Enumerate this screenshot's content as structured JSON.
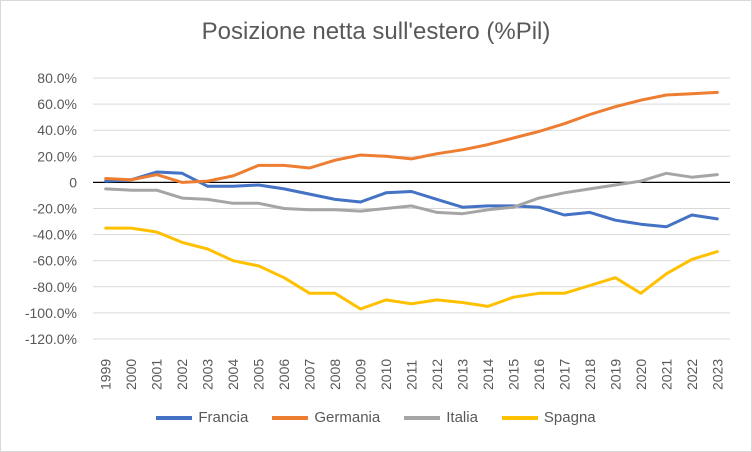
{
  "chart_data": {
    "type": "line",
    "title": "Posizione netta sull'estero (%Pil)",
    "categories": [
      "1999",
      "2000",
      "2001",
      "2002",
      "2003",
      "2004",
      "2005",
      "2006",
      "2007",
      "2008",
      "2009",
      "2010",
      "2011",
      "2012",
      "2013",
      "2014",
      "2015",
      "2016",
      "2017",
      "2018",
      "2019",
      "2020",
      "2021",
      "2022",
      "2023"
    ],
    "ylim": [
      -120,
      80
    ],
    "yticks": [
      80,
      60,
      40,
      20,
      0,
      -20,
      -40,
      -60,
      -80,
      -100,
      -120
    ],
    "ytick_labels": [
      "80.0%",
      "60.0%",
      "40.0%",
      "20.0%",
      "0",
      "-20.0%",
      "-40.0%",
      "-60.0%",
      "-80.0%",
      "-100.0%",
      "-120.0%"
    ],
    "grid": true,
    "legend_position": "bottom",
    "series": [
      {
        "name": "Francia",
        "color": "#4472c4",
        "values": [
          1,
          2,
          8,
          7,
          -3,
          -3,
          -2,
          -5,
          -9,
          -13,
          -15,
          -8,
          -7,
          -13,
          -19,
          -18,
          -18,
          -19,
          -25,
          -23,
          -29,
          -32,
          -34,
          -25,
          -28
        ]
      },
      {
        "name": "Germania",
        "color": "#ed7d31",
        "values": [
          3,
          2,
          6,
          0,
          1,
          5,
          13,
          13,
          11,
          17,
          21,
          20,
          18,
          22,
          25,
          29,
          34,
          39,
          45,
          52,
          58,
          63,
          67,
          68,
          69
        ]
      },
      {
        "name": "Italia",
        "color": "#a5a5a5",
        "values": [
          -5,
          -6,
          -6,
          -12,
          -13,
          -16,
          -16,
          -20,
          -21,
          -21,
          -22,
          -20,
          -18,
          -23,
          -24,
          -21,
          -19,
          -12,
          -8,
          -5,
          -2,
          1,
          7,
          4,
          6
        ]
      },
      {
        "name": "Spagna",
        "color": "#ffc000",
        "values": [
          -35,
          -35,
          -38,
          -46,
          -51,
          -60,
          -64,
          -73,
          -85,
          -85,
          -97,
          -90,
          -93,
          -90,
          -92,
          -95,
          -88,
          -85,
          -85,
          -79,
          -73,
          -85,
          -70,
          -59,
          -53
        ]
      }
    ]
  }
}
